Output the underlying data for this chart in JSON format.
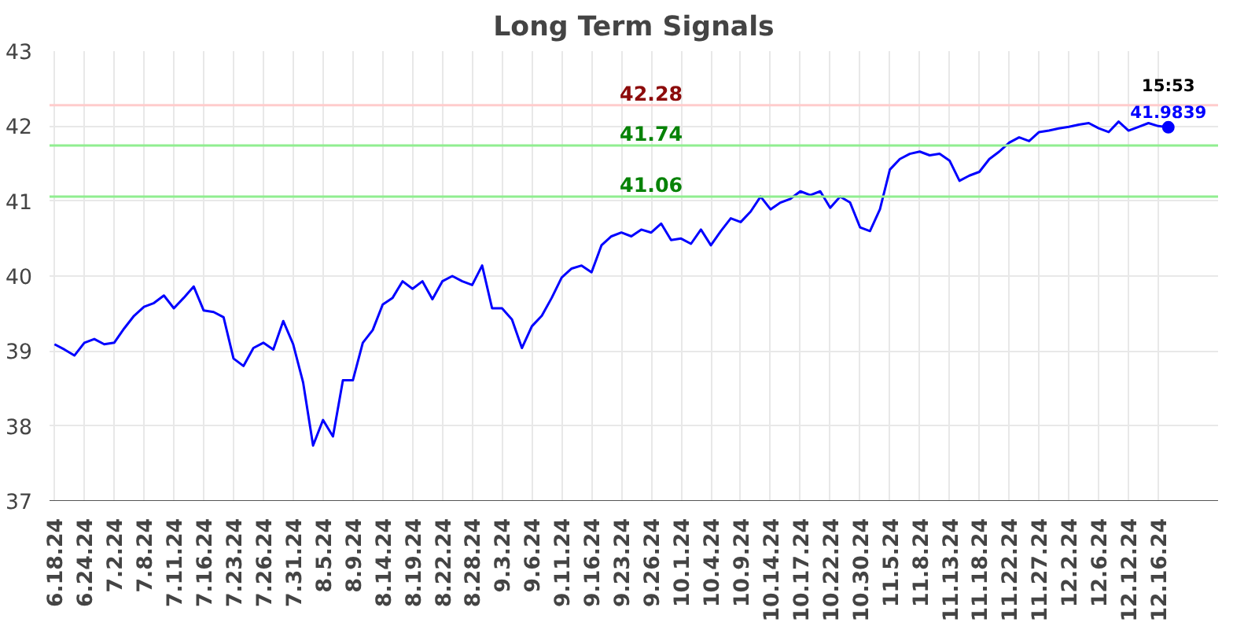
{
  "chart_data": {
    "type": "line",
    "title": "Long Term Signals",
    "categories": [
      "6.18.24",
      null,
      null,
      "6.24.24",
      null,
      null,
      "7.2.24",
      null,
      null,
      "7.8.24",
      null,
      null,
      "7.11.24",
      null,
      null,
      "7.16.24",
      null,
      null,
      "7.23.24",
      null,
      null,
      "7.26.24",
      null,
      null,
      "7.31.24",
      null,
      null,
      "8.5.24",
      null,
      null,
      "8.9.24",
      null,
      null,
      "8.14.24",
      null,
      null,
      "8.19.24",
      null,
      null,
      "8.22.24",
      null,
      null,
      "8.28.24",
      null,
      null,
      "9.3.24",
      null,
      null,
      "9.6.24",
      null,
      null,
      "9.11.24",
      null,
      null,
      "9.16.24",
      null,
      null,
      "9.23.24",
      null,
      null,
      "9.26.24",
      null,
      null,
      "10.1.24",
      null,
      null,
      "10.4.24",
      null,
      null,
      "10.9.24",
      null,
      null,
      "10.14.24",
      null,
      null,
      "10.17.24",
      null,
      null,
      "10.22.24",
      null,
      null,
      "10.30.24",
      null,
      null,
      "11.5.24",
      null,
      null,
      "11.8.24",
      null,
      null,
      "11.13.24",
      null,
      null,
      "11.18.24",
      null,
      null,
      "11.22.24",
      null,
      null,
      "11.27.24",
      null,
      null,
      "12.2.24",
      null,
      null,
      "12.6.24",
      null,
      null,
      "12.12.24",
      null,
      null,
      "12.16.24",
      null
    ],
    "series": [
      {
        "color": "#0000ff",
        "values": [
          39.09,
          39.02,
          38.94,
          39.11,
          39.16,
          39.09,
          39.11,
          39.3,
          39.47,
          39.59,
          39.64,
          39.74,
          39.57,
          39.71,
          39.86,
          39.54,
          39.52,
          39.45,
          38.9,
          38.8,
          39.04,
          39.11,
          39.02,
          39.4,
          39.09,
          38.58,
          37.74,
          38.08,
          37.86,
          38.61,
          38.61,
          39.11,
          39.28,
          39.62,
          39.71,
          39.93,
          39.83,
          39.93,
          39.69,
          39.93,
          40.0,
          39.93,
          39.88,
          40.14,
          39.57,
          39.57,
          39.42,
          39.04,
          39.33,
          39.47,
          39.71,
          39.98,
          40.1,
          40.14,
          40.05,
          40.41,
          40.53,
          40.58,
          40.53,
          40.62,
          40.58,
          40.7,
          40.48,
          40.5,
          40.43,
          40.62,
          40.41,
          40.6,
          40.77,
          40.72,
          40.86,
          41.06,
          40.89,
          40.98,
          41.03,
          41.13,
          41.08,
          41.13,
          40.91,
          41.06,
          40.98,
          40.65,
          40.6,
          40.89,
          41.42,
          41.56,
          41.63,
          41.66,
          41.61,
          41.63,
          41.54,
          41.27,
          41.34,
          41.39,
          41.56,
          41.66,
          41.78,
          41.85,
          41.8,
          41.92,
          41.94,
          41.97,
          41.99,
          42.02,
          42.04,
          41.97,
          41.92,
          42.06,
          41.94,
          41.99,
          42.04,
          42.0,
          41.9839
        ]
      }
    ],
    "ylim": [
      37,
      43
    ],
    "yticks": [
      37,
      38,
      39,
      40,
      41,
      42,
      43
    ],
    "grid": true,
    "ref_lines": [
      {
        "axis": "y",
        "value": 42.28,
        "label": "42.28",
        "color": "#ffcccc"
      },
      {
        "axis": "y",
        "value": 41.74,
        "label": "41.74",
        "color": "#90ee90"
      },
      {
        "axis": "y",
        "value": 41.06,
        "label": "41.06",
        "color": "#90ee90"
      }
    ],
    "annotations": [
      {
        "text": "15:53",
        "y": 41.9839
      },
      {
        "text": "41.9839",
        "y": 41.9839
      }
    ]
  }
}
